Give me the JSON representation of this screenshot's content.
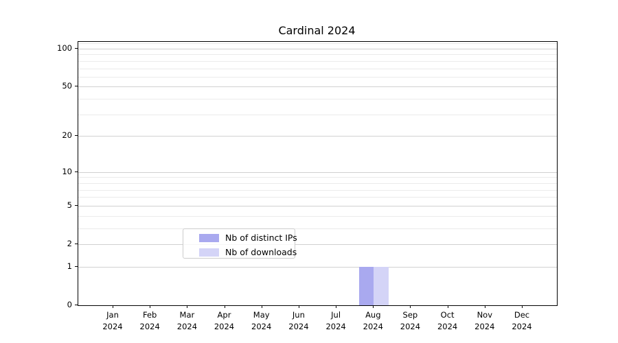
{
  "chart_data": {
    "type": "bar",
    "title": "Cardinal 2024",
    "categories": [
      "Jan",
      "Feb",
      "Mar",
      "Apr",
      "May",
      "Jun",
      "Jul",
      "Aug",
      "Sep",
      "Oct",
      "Nov",
      "Dec"
    ],
    "year_label": "2024",
    "series": [
      {
        "name": "Nb of distinct IPs",
        "color": "#a9a9ef",
        "values": [
          0,
          0,
          0,
          0,
          0,
          0,
          0,
          1,
          0,
          0,
          0,
          0
        ]
      },
      {
        "name": "Nb of downloads",
        "color": "#d4d4f7",
        "values": [
          0,
          0,
          0,
          0,
          0,
          0,
          0,
          1,
          0,
          0,
          0,
          0
        ]
      }
    ],
    "y_axis": {
      "scale": "log10(value+1)",
      "tick_labels": [
        0,
        1,
        2,
        5,
        10,
        20,
        50,
        100
      ],
      "major_gridlines": [
        1,
        2,
        5,
        10,
        20,
        50,
        100
      ],
      "minor_gridlines": [
        3,
        4,
        6,
        7,
        8,
        9,
        30,
        40,
        60,
        70,
        80,
        90,
        110
      ],
      "ylim_max": 117
    },
    "legend_position": "lower center",
    "grid": "horizontal only",
    "colors": {
      "major_grid": "#d0d0d0",
      "minor_grid": "#ebebeb",
      "spine": "#000000",
      "background": "#ffffff"
    }
  }
}
